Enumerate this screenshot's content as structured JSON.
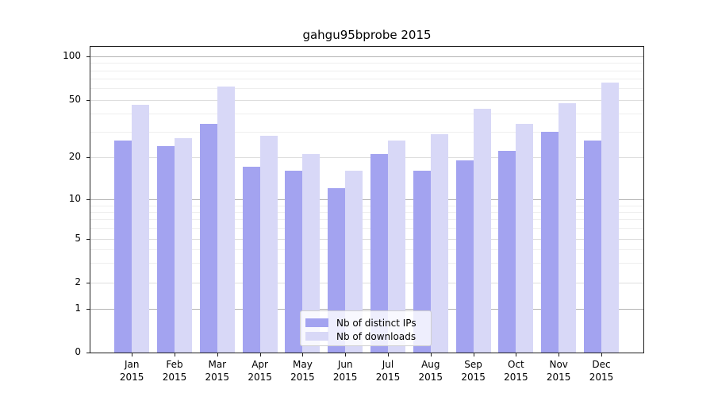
{
  "chart_data": {
    "type": "bar",
    "title": "gahgu95bprobe 2015",
    "categories": [
      "Jan",
      "Feb",
      "Mar",
      "Apr",
      "May",
      "Jun",
      "Jul",
      "Aug",
      "Sep",
      "Oct",
      "Nov",
      "Dec"
    ],
    "x_axis": {
      "year": "2015",
      "tick_label_style": "month on first line, year on second line"
    },
    "y_axis": {
      "scale": "log-like (logarithmic above 1, linear segment down to 0)",
      "ticks": [
        0,
        1,
        2,
        5,
        10,
        20,
        50,
        100
      ],
      "minor_gridlines": [
        3,
        4,
        6,
        7,
        8,
        9,
        30,
        40,
        60,
        70,
        80,
        90
      ],
      "range": [
        0,
        117
      ]
    },
    "series": [
      {
        "name": "Nb of distinct IPs",
        "color": "#a3a3f0",
        "values": [
          26,
          24,
          34,
          17,
          16,
          12,
          21,
          16,
          19,
          22,
          30,
          26
        ]
      },
      {
        "name": "Nb of downloads",
        "color": "#d8d8f7",
        "values": [
          46,
          27,
          62,
          28,
          21,
          16,
          26,
          29,
          43,
          34,
          47,
          66
        ]
      }
    ],
    "legend": {
      "position": "inside, lower center"
    },
    "grid": "horizontal major and minor gridlines"
  }
}
